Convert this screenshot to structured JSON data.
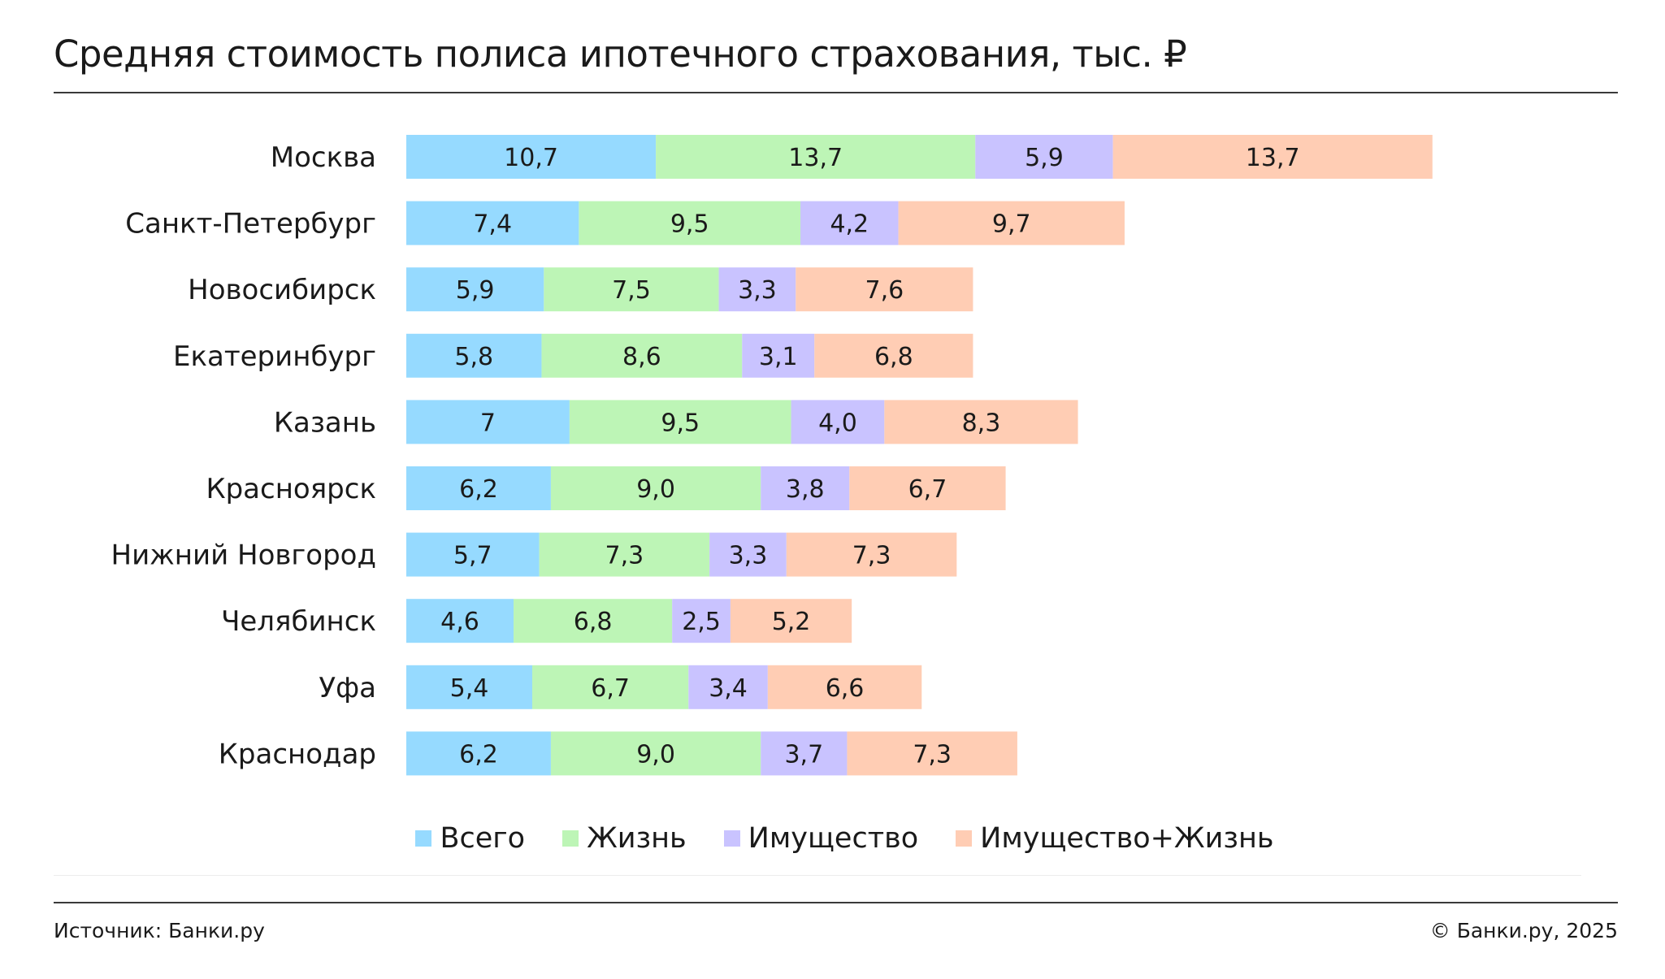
{
  "title": "Средняя стоимость полиса ипотечного страхования, тыс. ₽",
  "source": "Источник: Банки.ру",
  "copyright": "© Банки.ру, 2025",
  "legend": [
    {
      "label": "Всего",
      "color": "#96daff"
    },
    {
      "label": "Жизнь",
      "color": "#bdf5b6"
    },
    {
      "label": "Имущество",
      "color": "#c9c3ff"
    },
    {
      "label": "Имущество+Жизнь",
      "color": "#ffcdb4"
    }
  ],
  "chart_data": {
    "type": "bar",
    "orientation": "horizontal",
    "stacked": true,
    "title": "Средняя стоимость полиса ипотечного страхования, тыс. ₽",
    "categories": [
      "Москва",
      "Санкт-Петербург",
      "Новосибирск",
      "Екатеринбург",
      "Казань",
      "Красноярск",
      "Нижний Новгород",
      "Челябинск",
      "Уфа",
      "Краснодар"
    ],
    "series": [
      {
        "name": "Всего",
        "color": "#96daff",
        "values": [
          10.7,
          7.4,
          5.9,
          5.8,
          7,
          6.2,
          5.7,
          4.6,
          5.4,
          6.2
        ],
        "labels": [
          "10,7",
          "7,4",
          "5,9",
          "5,8",
          "7",
          "6,2",
          "5,7",
          "4,6",
          "5,4",
          "6,2"
        ]
      },
      {
        "name": "Жизнь",
        "color": "#bdf5b6",
        "values": [
          13.7,
          9.5,
          7.5,
          8.6,
          9.5,
          9.0,
          7.3,
          6.8,
          6.7,
          9.0
        ],
        "labels": [
          "13,7",
          "9,5",
          "7,5",
          "8,6",
          "9,5",
          "9,0",
          "7,3",
          "6,8",
          "6,7",
          "9,0"
        ]
      },
      {
        "name": "Имущество",
        "color": "#c9c3ff",
        "values": [
          5.9,
          4.2,
          3.3,
          3.1,
          4.0,
          3.8,
          3.3,
          2.5,
          3.4,
          3.7
        ],
        "labels": [
          "5,9",
          "4,2",
          "3,3",
          "3,1",
          "4,0",
          "3,8",
          "3,3",
          "2,5",
          "3,4",
          "3,7"
        ]
      },
      {
        "name": "Имущество+Жизнь",
        "color": "#ffcdb4",
        "values": [
          13.7,
          9.7,
          7.6,
          6.8,
          8.3,
          6.7,
          7.3,
          5.2,
          6.6,
          7.3
        ],
        "labels": [
          "13,7",
          "9,7",
          "7,6",
          "6,8",
          "8,3",
          "6,7",
          "7,3",
          "5,2",
          "6,6",
          "7,3"
        ]
      }
    ],
    "legend_position": "bottom",
    "grid": false
  }
}
